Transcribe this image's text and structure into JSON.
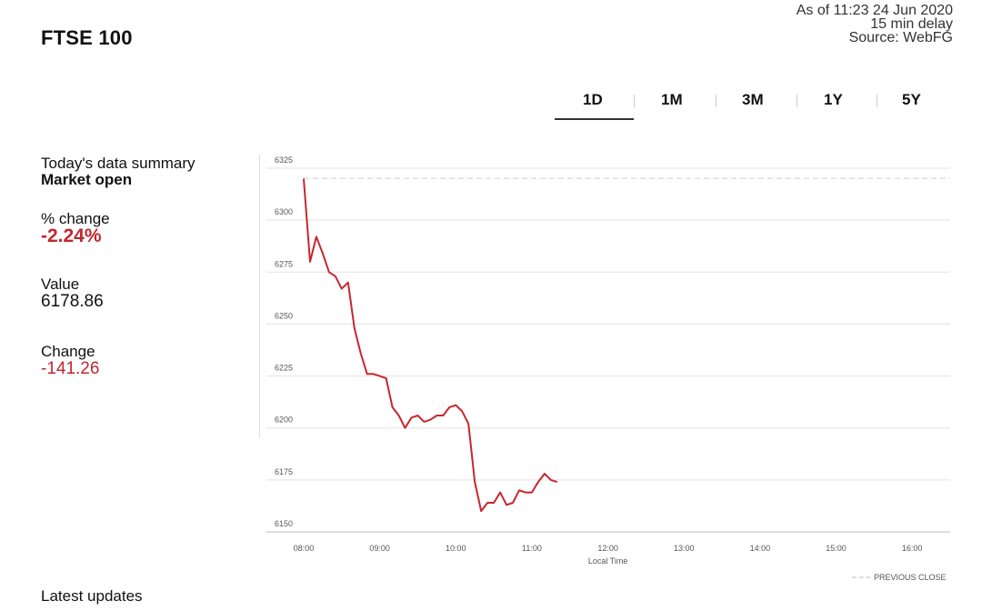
{
  "header": {
    "title": "FTSE 100",
    "as_of": "As of 11:23 24 Jun 2020",
    "delay": "15 min delay",
    "source": "Source: WebFG"
  },
  "tabs": [
    {
      "label": "1D",
      "selected": true
    },
    {
      "label": "1M",
      "selected": false
    },
    {
      "label": "3M",
      "selected": false
    },
    {
      "label": "1Y",
      "selected": false
    },
    {
      "label": "5Y",
      "selected": false
    }
  ],
  "summary": {
    "heading": "Today's data summary",
    "status": "Market open",
    "pct_change_label": "% change",
    "pct_change_value": "-2.24%",
    "value_label": "Value",
    "value_value": "6178.86",
    "change_label": "Change",
    "change_value": "-141.26"
  },
  "footer": {
    "latest_updates": "Latest updates"
  },
  "colors": {
    "line": "#c8262d",
    "negative": "#c1272d",
    "grid": "#e3e3e3",
    "previous_close": "#cccccc"
  },
  "chart_data": {
    "type": "line",
    "title": "",
    "xlabel": "Local Time",
    "ylabel": "",
    "xlim": [
      "08:00",
      "16:30"
    ],
    "ylim": [
      6150,
      6325
    ],
    "x_ticks": [
      "08:00",
      "09:00",
      "10:00",
      "11:00",
      "12:00",
      "13:00",
      "14:00",
      "15:00",
      "16:00"
    ],
    "y_ticks": [
      6150,
      6175,
      6200,
      6225,
      6250,
      6275,
      6300,
      6325
    ],
    "grid": true,
    "previous_close": 6320.12,
    "legend": [
      {
        "name": "PREVIOUS CLOSE",
        "style": "dashed",
        "placement": "bottom-right"
      }
    ],
    "series": [
      {
        "x": [
          "08:00",
          "08:05",
          "08:10",
          "08:15",
          "08:20",
          "08:25",
          "08:30",
          "08:35",
          "08:40",
          "08:45",
          "08:50",
          "08:55",
          "09:00",
          "09:05",
          "09:10",
          "09:15",
          "09:20",
          "09:25",
          "09:30",
          "09:35",
          "09:40",
          "09:45",
          "09:50",
          "09:55",
          "10:00",
          "10:05",
          "10:10",
          "10:15",
          "10:20",
          "10:25",
          "10:30",
          "10:35",
          "10:40",
          "10:45",
          "10:50",
          "10:55",
          "11:00",
          "11:05",
          "11:10",
          "11:15",
          "11:20"
        ],
        "y": [
          6320,
          6280,
          6292,
          6284,
          6275,
          6273,
          6267,
          6270,
          6248,
          6236,
          6226,
          6226,
          6225,
          6224,
          6210,
          6206,
          6200,
          6205,
          6206,
          6203,
          6204,
          6206,
          6206,
          6210,
          6211,
          6208,
          6202,
          6174,
          6160,
          6164,
          6164,
          6169,
          6163,
          6164,
          6170,
          6169,
          6169,
          6174,
          6178,
          6175,
          6174
        ]
      }
    ]
  }
}
